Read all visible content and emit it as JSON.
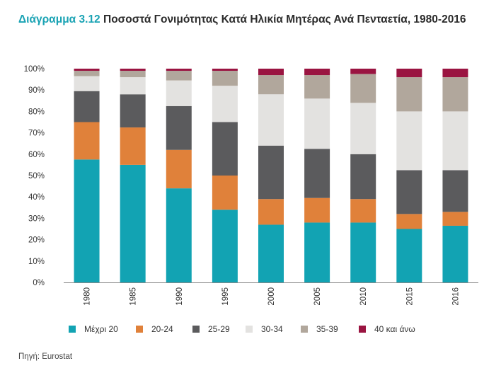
{
  "title": {
    "number": "Διάγραμμα 3.12",
    "text": "Ποσοστά Γονιμότητας Κατά Ηλικία Μητέρας Ανά Πενταετία, 1980-2016"
  },
  "source": "Πηγή: Eurostat",
  "chart_data": {
    "type": "bar",
    "stacked": true,
    "title": "Διάγραμμα 3.12 Ποσοστά Γονιμότητας Κατά Ηλικία Μητέρας Ανά Πενταετία, 1980-2016",
    "xlabel": "",
    "ylabel": "",
    "ylim": [
      0,
      100
    ],
    "yticks": [
      "0%",
      "10%",
      "20%",
      "30%",
      "40%",
      "50%",
      "60%",
      "70%",
      "80%",
      "90%",
      "100%"
    ],
    "grid": false,
    "legend_position": "bottom",
    "categories": [
      "1980",
      "1985",
      "1990",
      "1995",
      "2000",
      "2005",
      "2010",
      "2015",
      "2016"
    ],
    "series": [
      {
        "name": "Μέχρι 20",
        "color": "#12a3b3",
        "values": [
          57.5,
          55,
          44,
          34,
          27,
          28,
          28,
          25,
          26.5
        ]
      },
      {
        "name": "20-24",
        "color": "#e0813a",
        "values": [
          17.5,
          17.5,
          18,
          16,
          12,
          11.5,
          11,
          7,
          6.5
        ]
      },
      {
        "name": "25-29",
        "color": "#5b5b5d",
        "values": [
          14.5,
          15.5,
          20.5,
          25,
          25,
          23,
          21,
          20.5,
          19.5
        ]
      },
      {
        "name": "30-34",
        "color": "#e3e2e0",
        "values": [
          7,
          8,
          12,
          17,
          24,
          23.5,
          24,
          27.5,
          27.5
        ]
      },
      {
        "name": "35-39",
        "color": "#b1a79c",
        "values": [
          2.5,
          3,
          4.5,
          7,
          9,
          11,
          13.5,
          16,
          16
        ]
      },
      {
        "name": "40 και άνω",
        "color": "#9a1441",
        "values": [
          1,
          1,
          1,
          1,
          3,
          3,
          2.5,
          4,
          4
        ]
      }
    ]
  }
}
